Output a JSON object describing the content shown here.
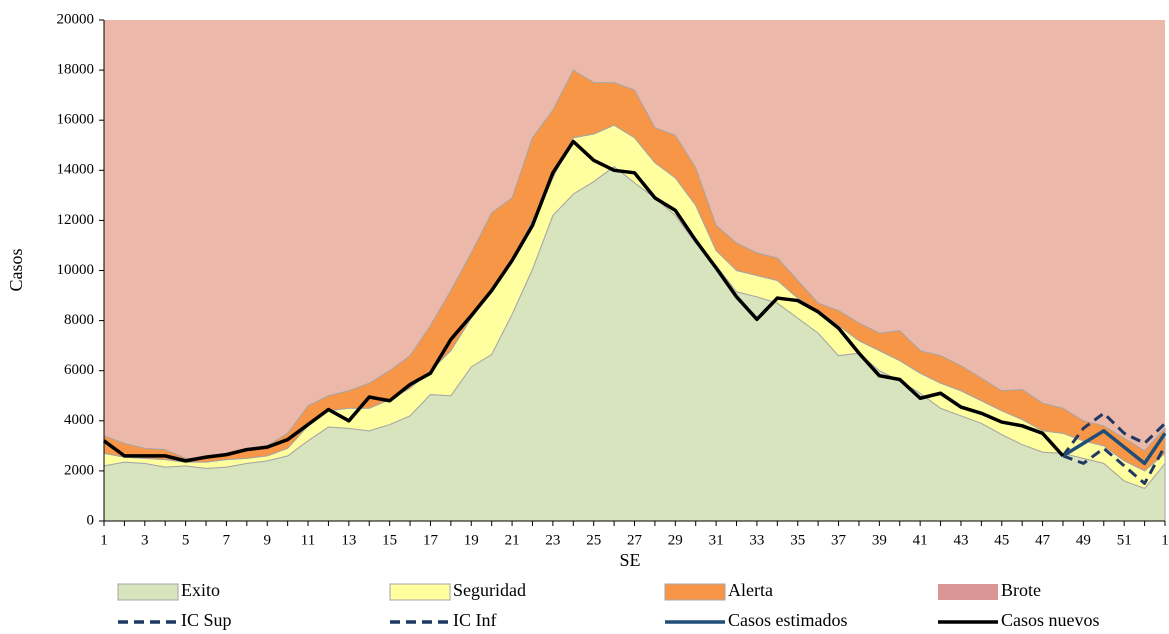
{
  "chart_data": {
    "type": "area",
    "xlabel": "SE",
    "ylabel": "Casos",
    "categories": [
      1,
      null,
      3,
      null,
      5,
      null,
      7,
      null,
      9,
      null,
      11,
      null,
      13,
      null,
      15,
      null,
      17,
      null,
      19,
      null,
      21,
      null,
      23,
      null,
      25,
      null,
      27,
      null,
      29,
      null,
      31,
      null,
      33,
      null,
      35,
      null,
      37,
      null,
      39,
      null,
      41,
      null,
      43,
      null,
      45,
      null,
      47,
      null,
      49,
      null,
      51,
      null,
      1
    ],
    "ylim": [
      0,
      20000
    ],
    "yticks": [
      0,
      2000,
      4000,
      6000,
      8000,
      10000,
      12000,
      14000,
      16000,
      18000,
      20000
    ],
    "series": [
      {
        "name": "Exito",
        "kind": "area",
        "color": "#d7e4bd",
        "values": [
          2200,
          2350,
          2300,
          2150,
          2200,
          2100,
          2150,
          2300,
          2400,
          2600,
          3200,
          3750,
          3700,
          3600,
          3850,
          4200,
          5050,
          5000,
          6150,
          6650,
          8250,
          10050,
          12200,
          13050,
          13550,
          14150,
          13500,
          12900,
          12200,
          11100,
          10200,
          9150,
          8950,
          8700,
          8100,
          7500,
          6600,
          6700,
          6000,
          5600,
          5100,
          4500,
          4200,
          3900,
          3450,
          3050,
          2750,
          2700,
          2500,
          2300,
          1600,
          1300,
          2300
        ]
      },
      {
        "name": "Seguridad",
        "kind": "area",
        "color": "#ffffa0",
        "values": [
          500,
          200,
          200,
          300,
          150,
          250,
          300,
          200,
          200,
          300,
          600,
          650,
          800,
          900,
          1000,
          1100,
          950,
          1800,
          1950,
          2500,
          2150,
          1950,
          1500,
          2250,
          1900,
          1650,
          1800,
          1400,
          1500,
          1500,
          600,
          850,
          850,
          900,
          800,
          900,
          1200,
          500,
          800,
          800,
          800,
          1000,
          1000,
          900,
          950,
          1000,
          850,
          800,
          700,
          700,
          800,
          700,
          400
        ]
      },
      {
        "name": "Alerta",
        "kind": "area",
        "color": "#f79646",
        "values": [
          700,
          550,
          400,
          400,
          150,
          150,
          250,
          300,
          400,
          600,
          800,
          600,
          700,
          1000,
          1150,
          1300,
          1800,
          2400,
          2600,
          3150,
          2500,
          3300,
          2700,
          2700,
          2050,
          1700,
          1900,
          1400,
          1700,
          1500,
          1000,
          1100,
          900,
          900,
          700,
          300,
          600,
          700,
          700,
          1200,
          900,
          1100,
          1000,
          900,
          800,
          1200,
          1100,
          1000,
          800,
          800,
          900,
          800,
          1000
        ]
      },
      {
        "name": "Brote",
        "kind": "fill-to-top",
        "color": "#ebb8aa",
        "legend_color": "#d99694"
      },
      {
        "name": "IC Sup",
        "kind": "line",
        "dash": true,
        "color": "#1f3864",
        "values": [
          null,
          null,
          null,
          null,
          null,
          null,
          null,
          null,
          null,
          null,
          null,
          null,
          null,
          null,
          null,
          null,
          null,
          null,
          null,
          null,
          null,
          null,
          null,
          null,
          null,
          null,
          null,
          null,
          null,
          null,
          null,
          null,
          null,
          null,
          null,
          null,
          null,
          null,
          null,
          null,
          null,
          null,
          null,
          null,
          null,
          null,
          null,
          2600,
          3700,
          4300,
          3500,
          3100,
          3900
        ]
      },
      {
        "name": "IC Inf",
        "kind": "line",
        "dash": true,
        "color": "#1f3864",
        "values": [
          null,
          null,
          null,
          null,
          null,
          null,
          null,
          null,
          null,
          null,
          null,
          null,
          null,
          null,
          null,
          null,
          null,
          null,
          null,
          null,
          null,
          null,
          null,
          null,
          null,
          null,
          null,
          null,
          null,
          null,
          null,
          null,
          null,
          null,
          null,
          null,
          null,
          null,
          null,
          null,
          null,
          null,
          null,
          null,
          null,
          null,
          null,
          2600,
          2300,
          2900,
          2200,
          1500,
          3000
        ]
      },
      {
        "name": "Casos estimados",
        "kind": "line",
        "dash": false,
        "color": "#1f4e79",
        "values": [
          null,
          null,
          null,
          null,
          null,
          null,
          null,
          null,
          null,
          null,
          null,
          null,
          null,
          null,
          null,
          null,
          null,
          null,
          null,
          null,
          null,
          null,
          null,
          null,
          null,
          null,
          null,
          null,
          null,
          null,
          null,
          null,
          null,
          null,
          null,
          null,
          null,
          null,
          null,
          null,
          null,
          null,
          null,
          null,
          null,
          null,
          null,
          2600,
          3100,
          3600,
          2950,
          2300,
          3500
        ]
      },
      {
        "name": "Casos nuevos",
        "kind": "line",
        "dash": false,
        "color": "#000000",
        "values": [
          3200,
          2600,
          2600,
          2600,
          2400,
          2550,
          2650,
          2850,
          2950,
          3250,
          3850,
          4450,
          4000,
          4950,
          4800,
          5450,
          5900,
          7250,
          8200,
          9200,
          10400,
          11800,
          13900,
          15150,
          14400,
          14000,
          13900,
          12900,
          12400,
          11200,
          10100,
          8950,
          8050,
          8900,
          8800,
          8350,
          7700,
          6700,
          5800,
          5650,
          4900,
          5100,
          4550,
          4300,
          3950,
          3800,
          3500,
          2600,
          null,
          null,
          null,
          null,
          null
        ]
      }
    ]
  }
}
